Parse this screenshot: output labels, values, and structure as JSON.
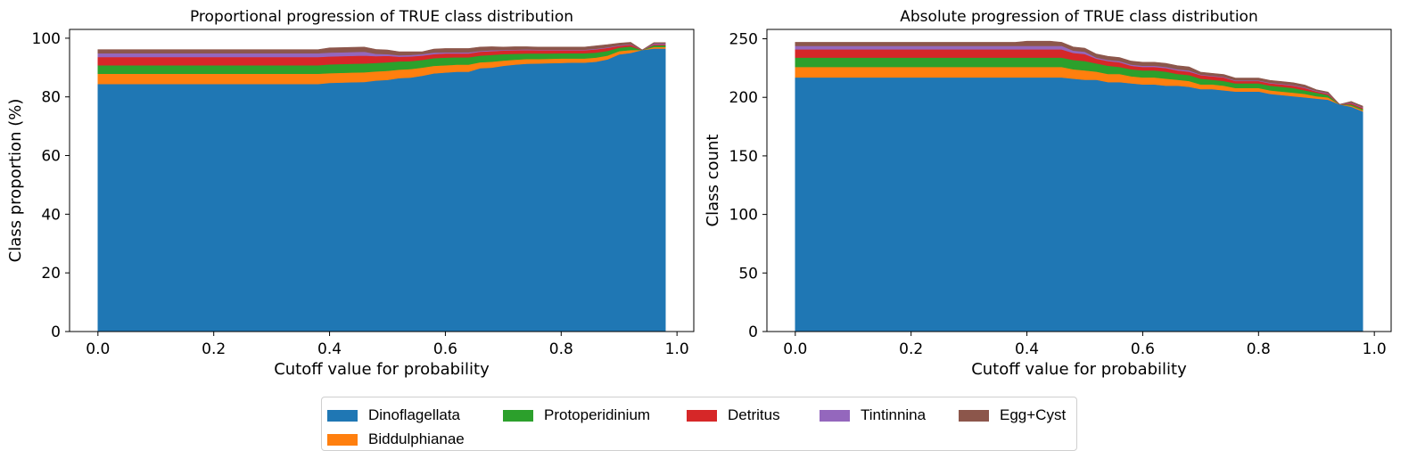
{
  "legend": {
    "items": [
      {
        "label": "Dinoflagellata",
        "color": "#1f77b4"
      },
      {
        "label": "Biddulphianae",
        "color": "#ff7f0e"
      },
      {
        "label": "Protoperidinium",
        "color": "#2ca02c"
      },
      {
        "label": "Detritus",
        "color": "#d62728"
      },
      {
        "label": "Tintinnina",
        "color": "#9467bd"
      },
      {
        "label": "Egg+Cyst",
        "color": "#8c564b"
      }
    ]
  },
  "chart_data": [
    {
      "type": "area",
      "stacked": true,
      "title": "Proportional progression of TRUE class distribution",
      "xlabel": "Cutoff value for probability",
      "ylabel": "Class proportion (%)",
      "xlim": [
        -0.049,
        1.029
      ],
      "ylim": [
        0,
        103
      ],
      "xticks": [
        0.0,
        0.2,
        0.4,
        0.6,
        0.8,
        1.0
      ],
      "yticks": [
        0,
        20,
        40,
        60,
        80,
        100
      ],
      "grid": false,
      "x": [
        0.0,
        0.02,
        0.04,
        0.06,
        0.08,
        0.1,
        0.12,
        0.14,
        0.16,
        0.18,
        0.2,
        0.22,
        0.24,
        0.26,
        0.28,
        0.3,
        0.32,
        0.34,
        0.36,
        0.38,
        0.4,
        0.42,
        0.44,
        0.46,
        0.48,
        0.5,
        0.52,
        0.54,
        0.56,
        0.58,
        0.6,
        0.62,
        0.64,
        0.66,
        0.68,
        0.7,
        0.72,
        0.74,
        0.76,
        0.78,
        0.8,
        0.82,
        0.84,
        0.86,
        0.88,
        0.9,
        0.92,
        0.94,
        0.96,
        0.98
      ],
      "series": [
        {
          "name": "Dinoflagellata",
          "values": [
            84.4,
            84.4,
            84.4,
            84.4,
            84.4,
            84.4,
            84.4,
            84.4,
            84.4,
            84.4,
            84.4,
            84.4,
            84.4,
            84.4,
            84.4,
            84.4,
            84.4,
            84.4,
            84.4,
            84.4,
            84.8,
            84.9,
            85.0,
            85.1,
            85.6,
            85.8,
            86.4,
            86.6,
            87.2,
            88.0,
            88.3,
            88.6,
            88.6,
            89.8,
            90.0,
            90.6,
            91.0,
            91.3,
            91.4,
            91.5,
            91.6,
            91.7,
            91.7,
            92.0,
            92.8,
            94.5,
            95.0,
            96.0,
            96.5,
            96.5
          ]
        },
        {
          "name": "Biddulphianae",
          "values": [
            3.5,
            3.5,
            3.5,
            3.5,
            3.5,
            3.5,
            3.5,
            3.5,
            3.5,
            3.5,
            3.5,
            3.5,
            3.5,
            3.5,
            3.5,
            3.5,
            3.5,
            3.5,
            3.5,
            3.5,
            3.3,
            3.3,
            3.3,
            3.3,
            3.1,
            3.1,
            2.9,
            2.9,
            2.8,
            2.6,
            2.5,
            2.4,
            2.4,
            2.0,
            2.0,
            1.8,
            1.7,
            1.6,
            1.5,
            1.5,
            1.5,
            1.4,
            1.4,
            1.4,
            1.3,
            1.1,
            1.0,
            0.0,
            0.5,
            0.5
          ]
        },
        {
          "name": "Protoperidinium",
          "values": [
            2.9,
            2.9,
            2.9,
            2.9,
            2.9,
            2.9,
            2.9,
            2.9,
            2.9,
            2.9,
            2.9,
            2.9,
            2.9,
            2.9,
            2.9,
            2.9,
            2.9,
            2.9,
            2.9,
            2.9,
            3.0,
            3.0,
            3.0,
            3.0,
            2.9,
            2.9,
            2.8,
            2.7,
            2.6,
            2.6,
            2.6,
            2.5,
            2.5,
            2.3,
            2.3,
            2.2,
            2.0,
            1.9,
            1.9,
            1.8,
            1.8,
            1.8,
            1.8,
            1.7,
            1.6,
            1.2,
            1.2,
            0.0,
            0.6,
            0.6
          ]
        },
        {
          "name": "Detritus",
          "values": [
            2.8,
            2.8,
            2.8,
            2.8,
            2.8,
            2.8,
            2.8,
            2.8,
            2.8,
            2.8,
            2.8,
            2.8,
            2.8,
            2.8,
            2.8,
            2.8,
            2.8,
            2.8,
            2.8,
            2.8,
            2.7,
            2.7,
            2.7,
            2.7,
            2.3,
            2.2,
            1.6,
            1.6,
            1.5,
            1.4,
            1.4,
            1.3,
            1.3,
            1.3,
            1.3,
            1.2,
            1.2,
            1.2,
            1.1,
            1.1,
            1.0,
            1.0,
            1.0,
            1.1,
            1.0,
            0.6,
            0.6,
            0.0,
            0.3,
            0.3
          ]
        },
        {
          "name": "Tintinnina",
          "values": [
            1.3,
            1.3,
            1.3,
            1.3,
            1.3,
            1.3,
            1.3,
            1.3,
            1.3,
            1.3,
            1.3,
            1.3,
            1.3,
            1.3,
            1.3,
            1.3,
            1.3,
            1.3,
            1.3,
            1.3,
            1.3,
            1.3,
            1.3,
            1.3,
            0.8,
            0.6,
            0.5,
            0.5,
            0.5,
            0.5,
            0.4,
            0.4,
            0.4,
            0.3,
            0.3,
            0.2,
            0.2,
            0.2,
            0.2,
            0.2,
            0.2,
            0.2,
            0.2,
            0.2,
            0.2,
            0.2,
            0.2,
            0.0,
            0.3,
            0.3
          ]
        },
        {
          "name": "Egg+Cyst",
          "values": [
            1.2,
            1.2,
            1.2,
            1.2,
            1.2,
            1.2,
            1.2,
            1.2,
            1.2,
            1.2,
            1.2,
            1.2,
            1.2,
            1.2,
            1.2,
            1.2,
            1.2,
            1.2,
            1.2,
            1.2,
            1.6,
            1.6,
            1.6,
            1.6,
            1.5,
            1.4,
            1.2,
            1.1,
            0.8,
            1.2,
            1.3,
            1.3,
            1.3,
            1.3,
            1.2,
            1.0,
            1.0,
            0.9,
            0.9,
            0.9,
            0.9,
            0.9,
            0.9,
            1.0,
            0.9,
            0.7,
            0.6,
            0.0,
            0.3,
            0.3
          ]
        }
      ]
    },
    {
      "type": "area",
      "stacked": true,
      "title": "Absolute progression of TRUE class distribution",
      "xlabel": "Cutoff value for probability",
      "ylabel": "Class count",
      "xlim": [
        -0.049,
        1.029
      ],
      "ylim": [
        0,
        258
      ],
      "xticks": [
        0.0,
        0.2,
        0.4,
        0.6,
        0.8,
        1.0
      ],
      "yticks": [
        0,
        50,
        100,
        150,
        200,
        250
      ],
      "grid": false,
      "x": [
        0.0,
        0.02,
        0.04,
        0.06,
        0.08,
        0.1,
        0.12,
        0.14,
        0.16,
        0.18,
        0.2,
        0.22,
        0.24,
        0.26,
        0.28,
        0.3,
        0.32,
        0.34,
        0.36,
        0.38,
        0.4,
        0.42,
        0.44,
        0.46,
        0.48,
        0.5,
        0.52,
        0.54,
        0.56,
        0.58,
        0.6,
        0.62,
        0.64,
        0.66,
        0.68,
        0.7,
        0.72,
        0.74,
        0.76,
        0.78,
        0.8,
        0.82,
        0.84,
        0.86,
        0.88,
        0.9,
        0.92,
        0.94,
        0.96,
        0.98
      ],
      "series": [
        {
          "name": "Dinoflagellata",
          "values": [
            217,
            217,
            217,
            217,
            217,
            217,
            217,
            217,
            217,
            217,
            217,
            217,
            217,
            217,
            217,
            217,
            217,
            217,
            217,
            217,
            217,
            217,
            217,
            217,
            216,
            215,
            215,
            213,
            213,
            212,
            211,
            211,
            210,
            210,
            209,
            207,
            207,
            206,
            205,
            205,
            205,
            203,
            202,
            201,
            200,
            199,
            198,
            194,
            192,
            188
          ]
        },
        {
          "name": "Biddulphianae",
          "values": [
            9,
            9,
            9,
            9,
            9,
            9,
            9,
            9,
            9,
            9,
            9,
            9,
            9,
            9,
            9,
            9,
            9,
            9,
            9,
            9,
            9,
            9,
            9,
            9,
            8,
            8,
            7,
            7,
            7,
            6,
            6,
            6,
            6,
            5,
            5,
            4,
            4,
            4,
            3,
            3,
            3,
            3,
            3,
            3,
            3,
            2,
            2,
            0,
            1,
            1
          ]
        },
        {
          "name": "Protoperidinium",
          "values": [
            8,
            8,
            8,
            8,
            8,
            8,
            8,
            8,
            8,
            8,
            8,
            8,
            8,
            8,
            8,
            8,
            8,
            8,
            8,
            8,
            8,
            8,
            8,
            8,
            8,
            8,
            7,
            7,
            6,
            6,
            6,
            6,
            6,
            5,
            5,
            5,
            4,
            4,
            4,
            4,
            4,
            4,
            4,
            4,
            3,
            3,
            2,
            0,
            1,
            1
          ]
        },
        {
          "name": "Detritus",
          "values": [
            7,
            7,
            7,
            7,
            7,
            7,
            7,
            7,
            7,
            7,
            7,
            7,
            7,
            7,
            7,
            7,
            7,
            7,
            7,
            7,
            7,
            7,
            7,
            7,
            6,
            6,
            4,
            4,
            4,
            3,
            3,
            3,
            3,
            3,
            3,
            3,
            3,
            3,
            2,
            2,
            2,
            2,
            2,
            2,
            2,
            1,
            1,
            0,
            1,
            1
          ]
        },
        {
          "name": "Tintinnina",
          "values": [
            3,
            3,
            3,
            3,
            3,
            3,
            3,
            3,
            3,
            3,
            3,
            3,
            3,
            3,
            3,
            3,
            3,
            3,
            3,
            3,
            3,
            3,
            3,
            3,
            2,
            2,
            1,
            1,
            1,
            1,
            1,
            1,
            1,
            1,
            1,
            0.5,
            0.5,
            0.5,
            0.5,
            0.5,
            0.5,
            0.5,
            0.5,
            0.5,
            0.5,
            0.5,
            0.5,
            0,
            0.5,
            0.5
          ]
        },
        {
          "name": "Egg+Cyst",
          "values": [
            3,
            3,
            3,
            3,
            3,
            3,
            3,
            3,
            3,
            3,
            3,
            3,
            3,
            3,
            3,
            3,
            3,
            3,
            3,
            3,
            4,
            4,
            4,
            3,
            3,
            3,
            3,
            3,
            3,
            3,
            3,
            3,
            3,
            3,
            3,
            2,
            2,
            2,
            2,
            2,
            2,
            2,
            2,
            2,
            2,
            1,
            1,
            0,
            1,
            1
          ]
        }
      ]
    }
  ]
}
